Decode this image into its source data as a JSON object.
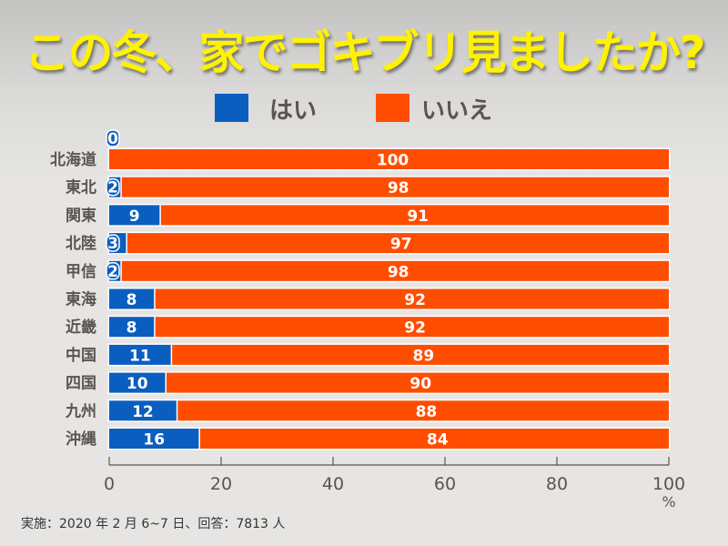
{
  "colors": {
    "yes": "#0a5ebf",
    "no": "#ff4d00",
    "title": "#fff200",
    "text": "#5a5452"
  },
  "chart_data": {
    "type": "bar",
    "orientation": "horizontal",
    "stacked": true,
    "title": "この冬、家でゴキブリ見ましたか?",
    "categories": [
      "北海道",
      "東北",
      "関東",
      "北陸",
      "甲信",
      "東海",
      "近畿",
      "中国",
      "四国",
      "九州",
      "沖縄"
    ],
    "series": [
      {
        "name": "はい",
        "values": [
          0,
          2,
          9,
          3,
          2,
          8,
          8,
          11,
          10,
          12,
          16
        ]
      },
      {
        "name": "いいえ",
        "values": [
          100,
          98,
          91,
          97,
          98,
          92,
          92,
          89,
          90,
          88,
          84
        ]
      }
    ],
    "xlim": [
      0,
      100
    ],
    "xticks": [
      0,
      20,
      40,
      60,
      80,
      100
    ],
    "xunit": "%",
    "legend": "top-center",
    "grid": false
  },
  "footnote": "実施：2020 年 2 月 6~7 日、回答：7813 人"
}
